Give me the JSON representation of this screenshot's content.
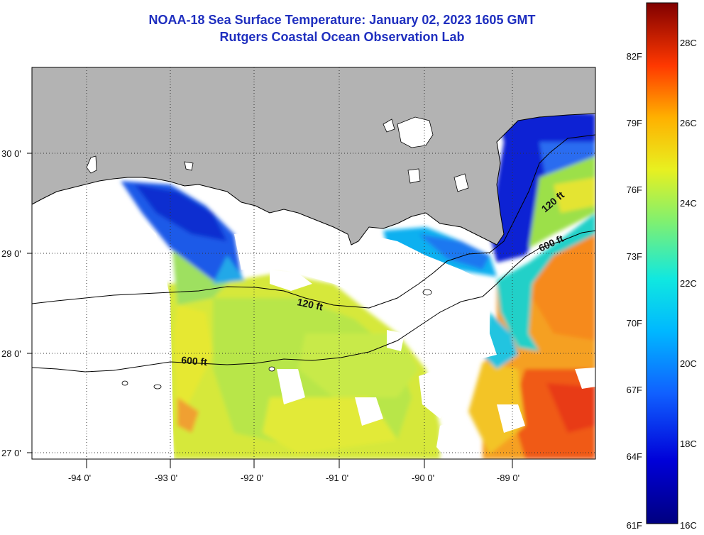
{
  "title_line1": "NOAA-18 Sea Surface Temperature:  January 02, 2023 1605 GMT",
  "title_line2": "Rutgers Coastal Ocean Observation Lab",
  "latitude_ticks": [
    "30 0'",
    "29 0'",
    "28 0'",
    "27 0'"
  ],
  "longitude_ticks": [
    "-94 0'",
    "-93 0'",
    "-92 0'",
    "-91 0'",
    "-90 0'",
    "-89 0'"
  ],
  "contour_labels": [
    "120 ft",
    "600 ft",
    "120 ft",
    "600 ft"
  ],
  "colorbar": {
    "fahrenheit_labels": [
      "82F",
      "79F",
      "76F",
      "73F",
      "70F",
      "67F",
      "64F",
      "61F"
    ],
    "celsius_labels": [
      "28C",
      "26C",
      "24C",
      "22C",
      "20C",
      "18C",
      "16C"
    ]
  },
  "colors": {
    "land": "#b3b3b3",
    "title": "#1f2fbf",
    "cold": "#0a1fd0",
    "cool": "#1e90ff",
    "cyan": "#19d6d6",
    "green": "#7ddc55",
    "yellow": "#e8e830",
    "orange": "#f59a20",
    "red": "#e8401a"
  }
}
